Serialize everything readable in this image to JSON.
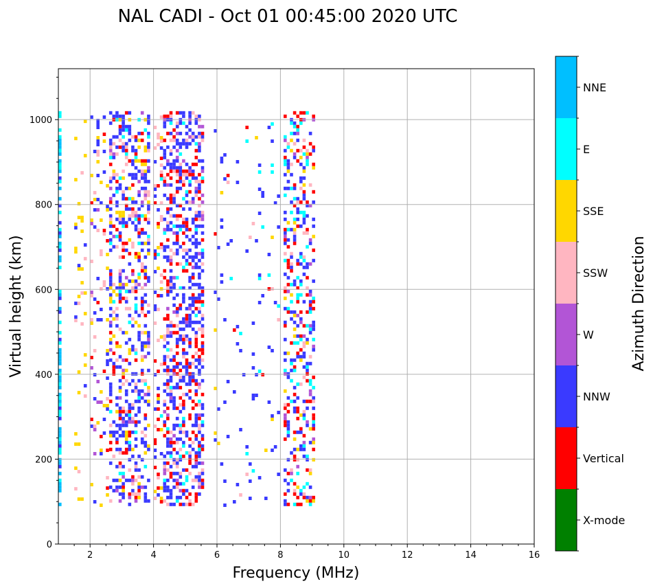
{
  "chart_data": {
    "type": "heatmap",
    "title": "NAL CADI - Oct 01 00:45:00 2020 UTC",
    "xlabel": "Frequency (MHz)",
    "ylabel": "Virtual height (km)",
    "xlim": [
      1,
      16
    ],
    "ylim": [
      0,
      1120
    ],
    "xticks": [
      2,
      4,
      6,
      8,
      10,
      12,
      14,
      16
    ],
    "yticks": [
      0,
      200,
      400,
      600,
      800,
      1000
    ],
    "grid": true,
    "colorbar": {
      "label": "Azimuth Direction",
      "categories": [
        "X-mode",
        "Vertical",
        "NNW",
        "W",
        "SSW",
        "SSE",
        "E",
        "NNE"
      ],
      "colors": [
        "#008000",
        "#ff0000",
        "#3a3aff",
        "#b255d6",
        "#ffb6c1",
        "#ffd700",
        "#00ffff",
        "#00bfff"
      ]
    },
    "echo_bands": [
      {
        "fmin": 1.0,
        "fmax": 1.1,
        "hmin": 90,
        "hmax": 1020,
        "density": 0.55,
        "weights": {
          "E": 3,
          "NNE": 3,
          "NNW": 1
        }
      },
      {
        "fmin": 1.5,
        "fmax": 1.9,
        "hmin": 90,
        "hmax": 1000,
        "density": 0.1,
        "weights": {
          "SSE": 6,
          "SSW": 2,
          "NNW": 1
        }
      },
      {
        "fmin": 2.0,
        "fmax": 2.6,
        "hmin": 90,
        "hmax": 1010,
        "density": 0.14,
        "weights": {
          "SSE": 3,
          "SSW": 2,
          "NNW": 3,
          "W": 1,
          "Vertical": 1
        }
      },
      {
        "fmin": 2.6,
        "fmax": 3.9,
        "hmin": 90,
        "hmax": 1020,
        "density": 0.35,
        "weights": {
          "NNW": 6,
          "SSE": 2,
          "SSW": 2,
          "Vertical": 2,
          "E": 1,
          "W": 1
        }
      },
      {
        "fmin": 4.0,
        "fmax": 4.3,
        "hmin": 90,
        "hmax": 1010,
        "density": 0.22,
        "weights": {
          "NNW": 3,
          "SSW": 2,
          "Vertical": 2,
          "E": 1,
          "SSE": 1
        }
      },
      {
        "fmin": 4.3,
        "fmax": 5.6,
        "hmin": 90,
        "hmax": 1020,
        "density": 0.45,
        "weights": {
          "NNW": 7,
          "Vertical": 3,
          "SSW": 2,
          "E": 1,
          "W": 1
        }
      },
      {
        "fmin": 5.9,
        "fmax": 8.0,
        "hmin": 90,
        "hmax": 1010,
        "density": 0.04,
        "weights": {
          "NNW": 6,
          "SSW": 1,
          "Vertical": 1,
          "SSE": 1,
          "E": 1
        }
      },
      {
        "fmin": 8.1,
        "fmax": 9.1,
        "hmin": 90,
        "hmax": 1020,
        "density": 0.3,
        "weights": {
          "NNW": 5,
          "Vertical": 3,
          "E": 2,
          "SSW": 1,
          "W": 1,
          "SSE": 1
        }
      }
    ]
  }
}
